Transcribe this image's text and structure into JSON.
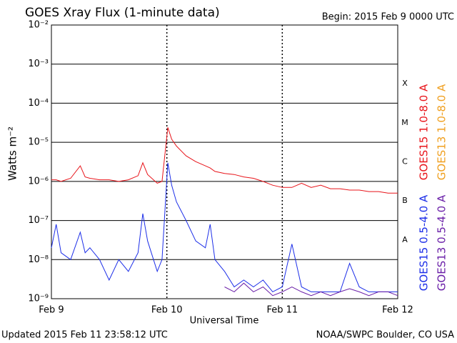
{
  "chart_data": {
    "type": "line",
    "title": "GOES Xray Flux (1-minute data)",
    "subtitle": "Begin:  2015 Feb 9 0000 UTC",
    "x_label": "Universal Time",
    "y_label": "Watts m⁻²",
    "footer_left": "Updated 2015 Feb 11 23:58:12 UTC",
    "footer_right": "NOAA/SWPC Boulder, CO USA",
    "flare_classes": [
      "A",
      "B",
      "C",
      "M",
      "X"
    ],
    "log_scale": true,
    "grid": true,
    "x": [
      0,
      1,
      2,
      4,
      6,
      7,
      8,
      10,
      12,
      14,
      16,
      18,
      19,
      20,
      22,
      23,
      24.2,
      25,
      26,
      28,
      30,
      32,
      33,
      34,
      36,
      38,
      40,
      42,
      44,
      46,
      48,
      50,
      52,
      54,
      56,
      58,
      60,
      62,
      64,
      66,
      68,
      70,
      72
    ],
    "xlim": [
      0,
      72
    ],
    "xticks": [
      {
        "value": 0,
        "label": "Feb 9"
      },
      {
        "value": 24,
        "label": "Feb 10"
      },
      {
        "value": 48,
        "label": "Feb 11"
      },
      {
        "value": 72,
        "label": "Feb 12"
      }
    ],
    "ylim": [
      1e-09,
      0.01
    ],
    "yticks": [
      {
        "value": 1e-09,
        "label": "10⁻⁹"
      },
      {
        "value": 1e-08,
        "label": "10⁻⁸"
      },
      {
        "value": 1e-07,
        "label": "10⁻⁷"
      },
      {
        "value": 1e-06,
        "label": "10⁻⁶"
      },
      {
        "value": 1e-05,
        "label": "10⁻⁵"
      },
      {
        "value": 0.0001,
        "label": "10⁻⁴"
      },
      {
        "value": 0.001,
        "label": "10⁻³"
      },
      {
        "value": 0.01,
        "label": "10⁻²"
      }
    ],
    "series": [
      {
        "name": "GOES15 1.0-8.0 A",
        "color": "#e8141a",
        "values": [
          1.1e-06,
          1.1e-06,
          1e-06,
          1.2e-06,
          2.5e-06,
          1.3e-06,
          1.2e-06,
          1.1e-06,
          1.1e-06,
          1e-06,
          1.1e-06,
          1.4e-06,
          3e-06,
          1.5e-06,
          9e-07,
          1e-06,
          2.4e-05,
          1.2e-05,
          8e-06,
          4.5e-06,
          3.2e-06,
          2.5e-06,
          2.2e-06,
          1.8e-06,
          1.6e-06,
          1.5e-06,
          1.3e-06,
          1.2e-06,
          1e-06,
          8e-07,
          7e-07,
          7e-07,
          9e-07,
          7e-07,
          8e-07,
          6.5e-07,
          6.5e-07,
          6e-07,
          6e-07,
          5.5e-07,
          5.5e-07,
          5e-07,
          5e-07
        ]
      },
      {
        "name": "GOES13 1.0-8.0 A",
        "color": "#f0a020",
        "values": [
          null,
          null,
          null,
          null,
          null,
          null,
          null,
          null,
          null,
          null,
          null,
          null,
          null,
          null,
          null,
          null,
          null,
          null,
          null,
          null,
          null,
          null,
          null,
          null,
          null,
          null,
          null,
          null,
          null,
          null,
          null,
          null,
          null,
          null,
          null,
          null,
          null,
          null,
          null,
          null,
          null,
          null,
          null
        ]
      },
      {
        "name": "GOES15 0.5-4.0 A",
        "color": "#1c2ee8",
        "values": [
          2e-08,
          8e-08,
          1.5e-08,
          1e-08,
          5e-08,
          1.5e-08,
          2e-08,
          1e-08,
          3e-09,
          1e-08,
          5e-09,
          1.5e-08,
          1.5e-07,
          3e-08,
          5e-09,
          1e-08,
          3e-06,
          8e-07,
          3e-07,
          1e-07,
          3e-08,
          2e-08,
          8e-08,
          1e-08,
          5e-09,
          2e-09,
          3e-09,
          2e-09,
          3e-09,
          1.5e-09,
          2e-09,
          2.5e-08,
          2e-09,
          1.5e-09,
          1.5e-09,
          1.5e-09,
          1.5e-09,
          8e-09,
          2e-09,
          1.5e-09,
          1.5e-09,
          1.5e-09,
          1.5e-09
        ]
      },
      {
        "name": "GOES13 0.5-4.0 A",
        "color": "#6a1fa8",
        "values": [
          null,
          null,
          null,
          null,
          null,
          null,
          null,
          null,
          null,
          null,
          null,
          null,
          null,
          null,
          null,
          null,
          null,
          null,
          null,
          null,
          null,
          null,
          null,
          null,
          2e-09,
          1.5e-09,
          2.5e-09,
          1.5e-09,
          2e-09,
          1.2e-09,
          1.5e-09,
          2e-09,
          1.5e-09,
          1.2e-09,
          1.5e-09,
          1.2e-09,
          1.5e-09,
          1.8e-09,
          1.5e-09,
          1.2e-09,
          1.5e-09,
          1.5e-09,
          1.2e-09
        ]
      }
    ]
  }
}
